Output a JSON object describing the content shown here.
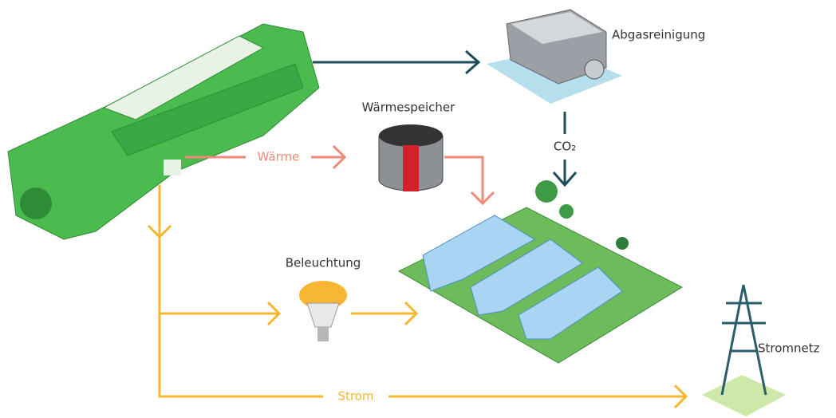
{
  "nodes": [
    {
      "label": "Abgasreinigung"
    },
    {
      "label": "Wärmespeicher"
    },
    {
      "label": "Beleuchtung"
    },
    {
      "label": "Stromnetz"
    }
  ],
  "flows": [
    {
      "label": "Wärme"
    },
    {
      "label": "CO₂"
    },
    {
      "label": "Strom"
    }
  ]
}
